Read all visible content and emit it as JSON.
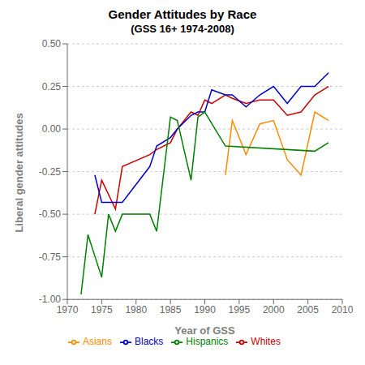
{
  "chart_data": {
    "type": "line",
    "title": "Gender Attitudes by Race",
    "subtitle": "(GSS 16+ 1974-2008)",
    "xlabel": "Year of GSS",
    "ylabel": "Liberal gender attitudes",
    "xlim": [
      1970,
      2010
    ],
    "ylim": [
      -1.0,
      0.5
    ],
    "xticks": [
      1970,
      1975,
      1980,
      1985,
      1990,
      1995,
      2000,
      2005,
      2010
    ],
    "yticks": [
      {
        "value": -1.0,
        "label": "-1.00"
      },
      -0.75,
      {
        "value": -0.5,
        "label": "-0.50"
      },
      -0.25,
      {
        "value": 0.0,
        "label": "0.00"
      },
      0.25,
      {
        "value": 0.5,
        "label": "0.50"
      }
    ],
    "grid": true,
    "legend": "bottom",
    "series": [
      {
        "name": "Whites",
        "color": "#cc0000",
        "x": [
          1974,
          1975,
          1977,
          1978,
          1982,
          1983,
          1985,
          1986,
          1988,
          1989,
          1990,
          1991,
          1993,
          1994,
          1996,
          1998,
          2000,
          2002,
          2004,
          2006,
          2008
        ],
        "values": [
          -0.5,
          -0.3,
          -0.47,
          -0.22,
          -0.15,
          -0.12,
          -0.08,
          0.0,
          0.1,
          0.08,
          0.17,
          0.15,
          0.2,
          0.18,
          0.15,
          0.17,
          0.17,
          0.08,
          0.1,
          0.2,
          0.25
        ]
      },
      {
        "name": "Blacks",
        "color": "#0000cc",
        "x": [
          1974,
          1975,
          1977,
          1978,
          1982,
          1983,
          1985,
          1986,
          1988,
          1989,
          1990,
          1991,
          1993,
          1994,
          1996,
          1998,
          2000,
          2002,
          2004,
          2006,
          2008
        ],
        "values": [
          -0.27,
          -0.43,
          -0.43,
          -0.43,
          -0.22,
          -0.1,
          -0.05,
          0.0,
          0.08,
          0.1,
          0.1,
          0.23,
          0.2,
          0.2,
          0.13,
          0.2,
          0.25,
          0.15,
          0.25,
          0.25,
          0.33
        ]
      },
      {
        "name": "Asians",
        "color": "#ff8c00",
        "x": [
          1993,
          1994,
          1996,
          1998,
          2000,
          2002,
          2004,
          2006,
          2008
        ],
        "values": [
          -0.27,
          0.05,
          -0.15,
          0.03,
          0.05,
          -0.18,
          -0.27,
          0.1,
          0.05
        ]
      },
      {
        "name": "Hispanics",
        "color": "#008000",
        "x": [
          1972,
          1973,
          1975,
          1976,
          1977,
          1978,
          1982,
          1983,
          1985,
          1986,
          1988,
          1989,
          1990,
          1993,
          2006,
          2008
        ],
        "values": [
          -0.97,
          -0.62,
          -0.87,
          -0.5,
          -0.6,
          -0.5,
          -0.5,
          -0.6,
          0.07,
          0.05,
          -0.3,
          0.07,
          0.1,
          -0.1,
          -0.13,
          -0.08
        ]
      }
    ]
  }
}
